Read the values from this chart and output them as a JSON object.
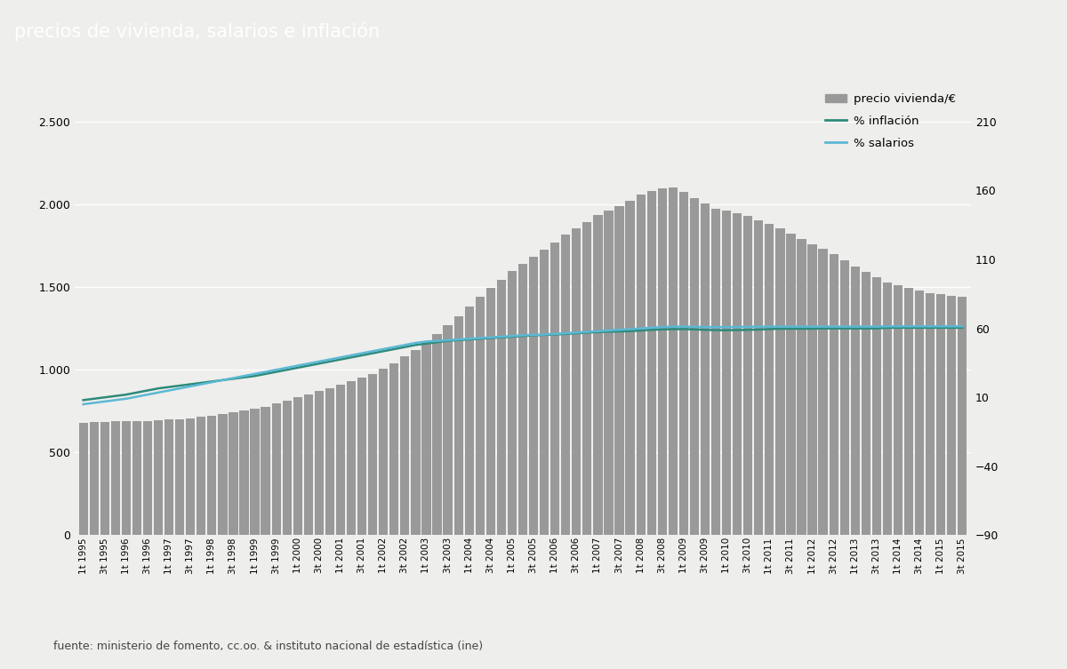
{
  "title": "precios de vivienda, salarios e inflación",
  "title_bg_color": "#5a5a4a",
  "title_text_color": "#ffffff",
  "plot_bg_color": "#eeeeec",
  "bar_color": "#999999",
  "inflacion_color": "#2d8a7a",
  "salarios_color": "#5bb8d4",
  "footer_text": "fuente: ministerio de fomento, cc.oo. & instituto nacional de estadística (ine)",
  "ylim_left": [
    0,
    2750
  ],
  "ylim_right": [
    -90,
    240
  ],
  "yticks_left": [
    0,
    500,
    1000,
    1500,
    2000,
    2500
  ],
  "yticks_right": [
    -90,
    -40,
    10,
    60,
    110,
    160,
    210
  ],
  "legend_labels": [
    "precio vivienda/€",
    "% inflación",
    "% salarios"
  ],
  "precio_vivienda": [
    680,
    682,
    685,
    687,
    688,
    690,
    692,
    695,
    698,
    703,
    708,
    715,
    723,
    732,
    742,
    752,
    764,
    778,
    795,
    813,
    833,
    853,
    872,
    890,
    910,
    930,
    955,
    975,
    1005,
    1040,
    1080,
    1120,
    1165,
    1215,
    1270,
    1325,
    1385,
    1440,
    1495,
    1545,
    1595,
    1640,
    1685,
    1725,
    1770,
    1815,
    1855,
    1890,
    1935,
    1965,
    1990,
    2020,
    2060,
    2080,
    2095,
    2100,
    2075,
    2040,
    2005,
    1975,
    1960,
    1945,
    1930,
    1905,
    1880,
    1855,
    1825,
    1790,
    1760,
    1730,
    1700,
    1660,
    1625,
    1590,
    1560,
    1530,
    1510,
    1495,
    1480,
    1465,
    1455,
    1448,
    1444
  ],
  "inflacion": [
    8.0,
    9.0,
    10.0,
    11.0,
    12.0,
    13.5,
    15.0,
    16.5,
    17.5,
    18.5,
    19.5,
    20.5,
    21.5,
    22.5,
    23.5,
    24.5,
    25.5,
    27.0,
    28.5,
    30.0,
    31.5,
    33.0,
    34.5,
    36.0,
    37.5,
    39.0,
    40.5,
    42.0,
    43.5,
    45.0,
    46.5,
    48.0,
    49.0,
    50.0,
    51.0,
    51.5,
    52.0,
    52.5,
    53.0,
    53.5,
    54.0,
    54.5,
    55.0,
    55.3,
    55.6,
    56.0,
    56.5,
    57.0,
    57.3,
    57.6,
    57.8,
    58.0,
    58.5,
    59.0,
    59.3,
    59.5,
    59.5,
    59.3,
    59.0,
    58.8,
    58.7,
    58.8,
    59.0,
    59.2,
    59.5,
    59.8,
    59.8,
    59.8,
    59.8,
    60.0,
    60.0,
    60.0,
    60.0,
    60.0,
    60.0,
    60.5,
    60.5,
    60.5,
    60.5,
    60.5,
    60.5,
    60.5,
    60.5
  ],
  "salarios": [
    5.0,
    6.0,
    7.0,
    8.0,
    9.0,
    10.5,
    12.0,
    13.5,
    15.0,
    16.5,
    18.0,
    19.5,
    21.0,
    22.5,
    24.0,
    25.5,
    27.0,
    28.5,
    30.0,
    31.5,
    33.0,
    34.5,
    36.0,
    37.5,
    39.0,
    40.5,
    42.0,
    43.5,
    45.0,
    46.5,
    48.0,
    49.5,
    50.5,
    51.0,
    51.5,
    52.0,
    52.5,
    53.0,
    53.5,
    54.0,
    54.5,
    55.0,
    55.3,
    55.6,
    56.0,
    56.5,
    57.0,
    57.5,
    58.0,
    58.5,
    59.0,
    59.5,
    60.0,
    60.5,
    61.0,
    61.3,
    61.3,
    61.2,
    61.0,
    61.0,
    61.0,
    61.0,
    61.2,
    61.3,
    61.3,
    61.3,
    61.3,
    61.3,
    61.3,
    61.3,
    61.3,
    61.3,
    61.3,
    61.3,
    61.3,
    61.5,
    61.5,
    61.5,
    61.5,
    61.5,
    61.5,
    61.5,
    61.5
  ]
}
